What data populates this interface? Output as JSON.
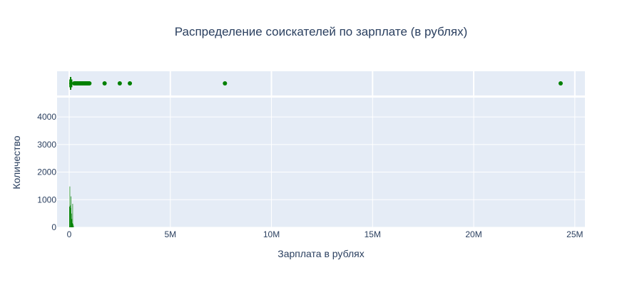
{
  "chart_data": {
    "type": "histogram",
    "title": "Распределение соискателей по зарплате (в рублях)",
    "xlabel": "Зарплата в рублях",
    "ylabel": "Количество",
    "xlim": [
      -600000,
      25500000
    ],
    "ylim": [
      0,
      4700
    ],
    "x_tick_values": [
      0,
      5000000,
      10000000,
      15000000,
      20000000,
      25000000
    ],
    "x_tick_labels": [
      "0",
      "5M",
      "10M",
      "15M",
      "20M",
      "25M"
    ],
    "y_tick_values": [
      0,
      1000,
      2000,
      3000,
      4000
    ],
    "y_tick_labels": [
      "0",
      "1000",
      "2000",
      "3000",
      "4000"
    ],
    "color": "#008000",
    "plot_bg": "#e5ecf6",
    "grid": true,
    "histogram_bins": [
      {
        "x0": 0,
        "x1": 20000,
        "count": 750
      },
      {
        "x0": 20000,
        "x1": 40000,
        "count": 1480
      },
      {
        "x0": 40000,
        "x1": 60000,
        "count": 790
      },
      {
        "x0": 60000,
        "x1": 80000,
        "count": 700
      },
      {
        "x0": 80000,
        "x1": 100000,
        "count": 1120
      },
      {
        "x0": 100000,
        "x1": 120000,
        "count": 500
      },
      {
        "x0": 120000,
        "x1": 140000,
        "count": 300
      },
      {
        "x0": 140000,
        "x1": 160000,
        "count": 150
      },
      {
        "x0": 160000,
        "x1": 180000,
        "count": 850
      },
      {
        "x0": 180000,
        "x1": 200000,
        "count": 120
      },
      {
        "x0": 200000,
        "x1": 220000,
        "count": 60
      }
    ],
    "box": {
      "orientation": "h",
      "q1": 40000,
      "median": 70000,
      "q3": 120000,
      "whisker_low": 0,
      "whisker_high": 240000,
      "outliers": [
        250000,
        300000,
        350000,
        400000,
        450000,
        500000,
        550000,
        600000,
        650000,
        700000,
        750000,
        800000,
        850000,
        900000,
        950000,
        1000000,
        1750000,
        2500000,
        3000000,
        7700000,
        24300000
      ]
    }
  }
}
